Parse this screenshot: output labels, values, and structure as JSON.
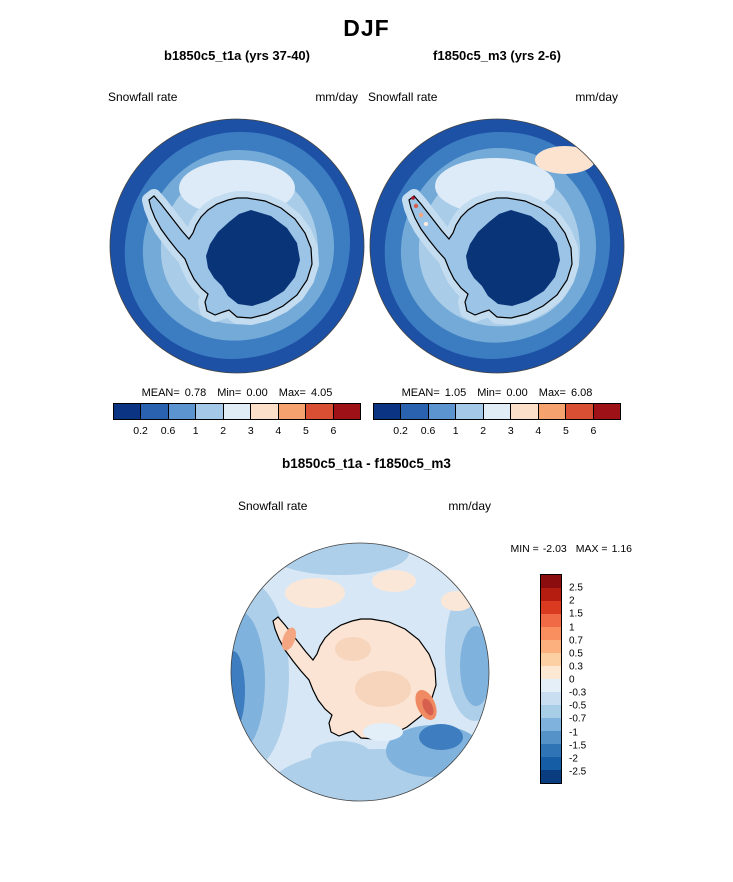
{
  "page_title": "DJF",
  "panels": [
    {
      "title": "b1850c5_t1a (yrs 37-40)",
      "variable_label": "Snowfall rate",
      "units_label": "mm/day",
      "stats": {
        "mean_label": "MEAN=",
        "mean": "0.78",
        "min_label": "Min=",
        "min": "0.00",
        "max_label": "Max=",
        "max": "4.05"
      },
      "colorbar": {
        "orientation": "horizontal",
        "ticks": [
          "0.2",
          "0.6",
          "1",
          "2",
          "3",
          "4",
          "5",
          "6"
        ],
        "colors": [
          "#0b3583",
          "#2b62b0",
          "#5b94cf",
          "#a3c8e8",
          "#e0edf7",
          "#fbdfc9",
          "#f5a26e",
          "#d94f33",
          "#9d1117"
        ]
      }
    },
    {
      "title": "f1850c5_m3 (yrs 2-6)",
      "variable_label": "Snowfall rate",
      "units_label": "mm/day",
      "stats": {
        "mean_label": "MEAN=",
        "mean": "1.05",
        "min_label": "Min=",
        "min": "0.00",
        "max_label": "Max=",
        "max": "6.08"
      },
      "colorbar": {
        "orientation": "horizontal",
        "ticks": [
          "0.2",
          "0.6",
          "1",
          "2",
          "3",
          "4",
          "5",
          "6"
        ],
        "colors": [
          "#0b3583",
          "#2b62b0",
          "#5b94cf",
          "#a3c8e8",
          "#e0edf7",
          "#fbdfc9",
          "#f5a26e",
          "#d94f33",
          "#9d1117"
        ]
      }
    },
    {
      "title": "b1850c5_t1a - f1850c5_m3",
      "variable_label": "Snowfall rate",
      "units_label": "mm/day",
      "stats": {
        "min_label": "MIN =",
        "min": "-2.03",
        "max_label": "MAX =",
        "max": "1.16"
      },
      "colorbar": {
        "orientation": "vertical",
        "ticks": [
          "2.5",
          "2",
          "1.5",
          "1",
          "0.7",
          "0.5",
          "0.3",
          "0",
          "-0.3",
          "-0.5",
          "-0.7",
          "-1",
          "-1.5",
          "-2",
          "-2.5"
        ],
        "colors": [
          "#8c0d0d",
          "#b51d10",
          "#d93a20",
          "#ef6a45",
          "#f98e5e",
          "#fbb07d",
          "#fdd0a3",
          "#fde8d4",
          "#e4eff8",
          "#c9def1",
          "#a7cde7",
          "#7fb2dc",
          "#5492c8",
          "#2f74b5",
          "#155ea6",
          "#0a3c80"
        ]
      }
    }
  ],
  "chart_data": [
    {
      "type": "heatmap",
      "subtype": "filled-contour polar map",
      "projection": "south polar stereographic (Antarctica)",
      "season": "DJF",
      "title": "b1850c5_t1a (yrs 37-40)",
      "variable": "Snowfall rate",
      "units": "mm/day",
      "stats": {
        "mean": 0.78,
        "min": 0.0,
        "max": 4.05
      },
      "contour_levels": [
        0.2,
        0.6,
        1,
        2,
        3,
        4,
        5,
        6
      ],
      "palette": [
        "#0b3583",
        "#2b62b0",
        "#5b94cf",
        "#a3c8e8",
        "#e0edf7",
        "#fbdfc9",
        "#f5a26e",
        "#d94f33",
        "#9d1117"
      ],
      "legend_position": "bottom",
      "pattern_note": "Lowest values (dark blue, <0.2) over interior Antarctic plateau; values increase toward coast and mid-ocean; darker blue band at outer map edge"
    },
    {
      "type": "heatmap",
      "subtype": "filled-contour polar map",
      "projection": "south polar stereographic (Antarctica)",
      "season": "DJF",
      "title": "f1850c5_m3 (yrs 2-6)",
      "variable": "Snowfall rate",
      "units": "mm/day",
      "stats": {
        "mean": 1.05,
        "min": 0.0,
        "max": 6.08
      },
      "contour_levels": [
        0.2,
        0.6,
        1,
        2,
        3,
        4,
        5,
        6
      ],
      "palette": [
        "#0b3583",
        "#2b62b0",
        "#5b94cf",
        "#a3c8e8",
        "#e0edf7",
        "#fbdfc9",
        "#f5a26e",
        "#d94f33",
        "#9d1117"
      ],
      "legend_position": "bottom",
      "pattern_note": "Similar pattern to left panel but wetter; warm-colored (orange/red) maxima along Antarctic Peninsula; pale patch in top-right ocean sector"
    },
    {
      "type": "heatmap",
      "subtype": "difference map (model A minus model B)",
      "projection": "south polar stereographic (Antarctica)",
      "season": "DJF",
      "title": "b1850c5_t1a - f1850c5_m3",
      "variable": "Snowfall rate",
      "units": "mm/day",
      "stats": {
        "min": -2.03,
        "max": 1.16
      },
      "contour_levels": [
        2.5,
        2,
        1.5,
        1,
        0.7,
        0.5,
        0.3,
        0,
        -0.3,
        -0.5,
        -0.7,
        -1,
        -1.5,
        -2,
        -2.5
      ],
      "palette": [
        "#8c0d0d",
        "#b51d10",
        "#d93a20",
        "#ef6a45",
        "#f98e5e",
        "#fbb07d",
        "#fdd0a3",
        "#fde8d4",
        "#e4eff8",
        "#c9def1",
        "#a7cde7",
        "#7fb2dc",
        "#5492c8",
        "#2f74b5",
        "#155ea6",
        "#0a3c80"
      ],
      "legend_position": "right",
      "pattern_note": "Weak positive (pale peach) anomalies over continent interior; negative (blue) anomalies over surrounding ocean, strongest off the East Antarctic coast (bottom-right); small positive red patch on east coast and peninsula"
    }
  ]
}
